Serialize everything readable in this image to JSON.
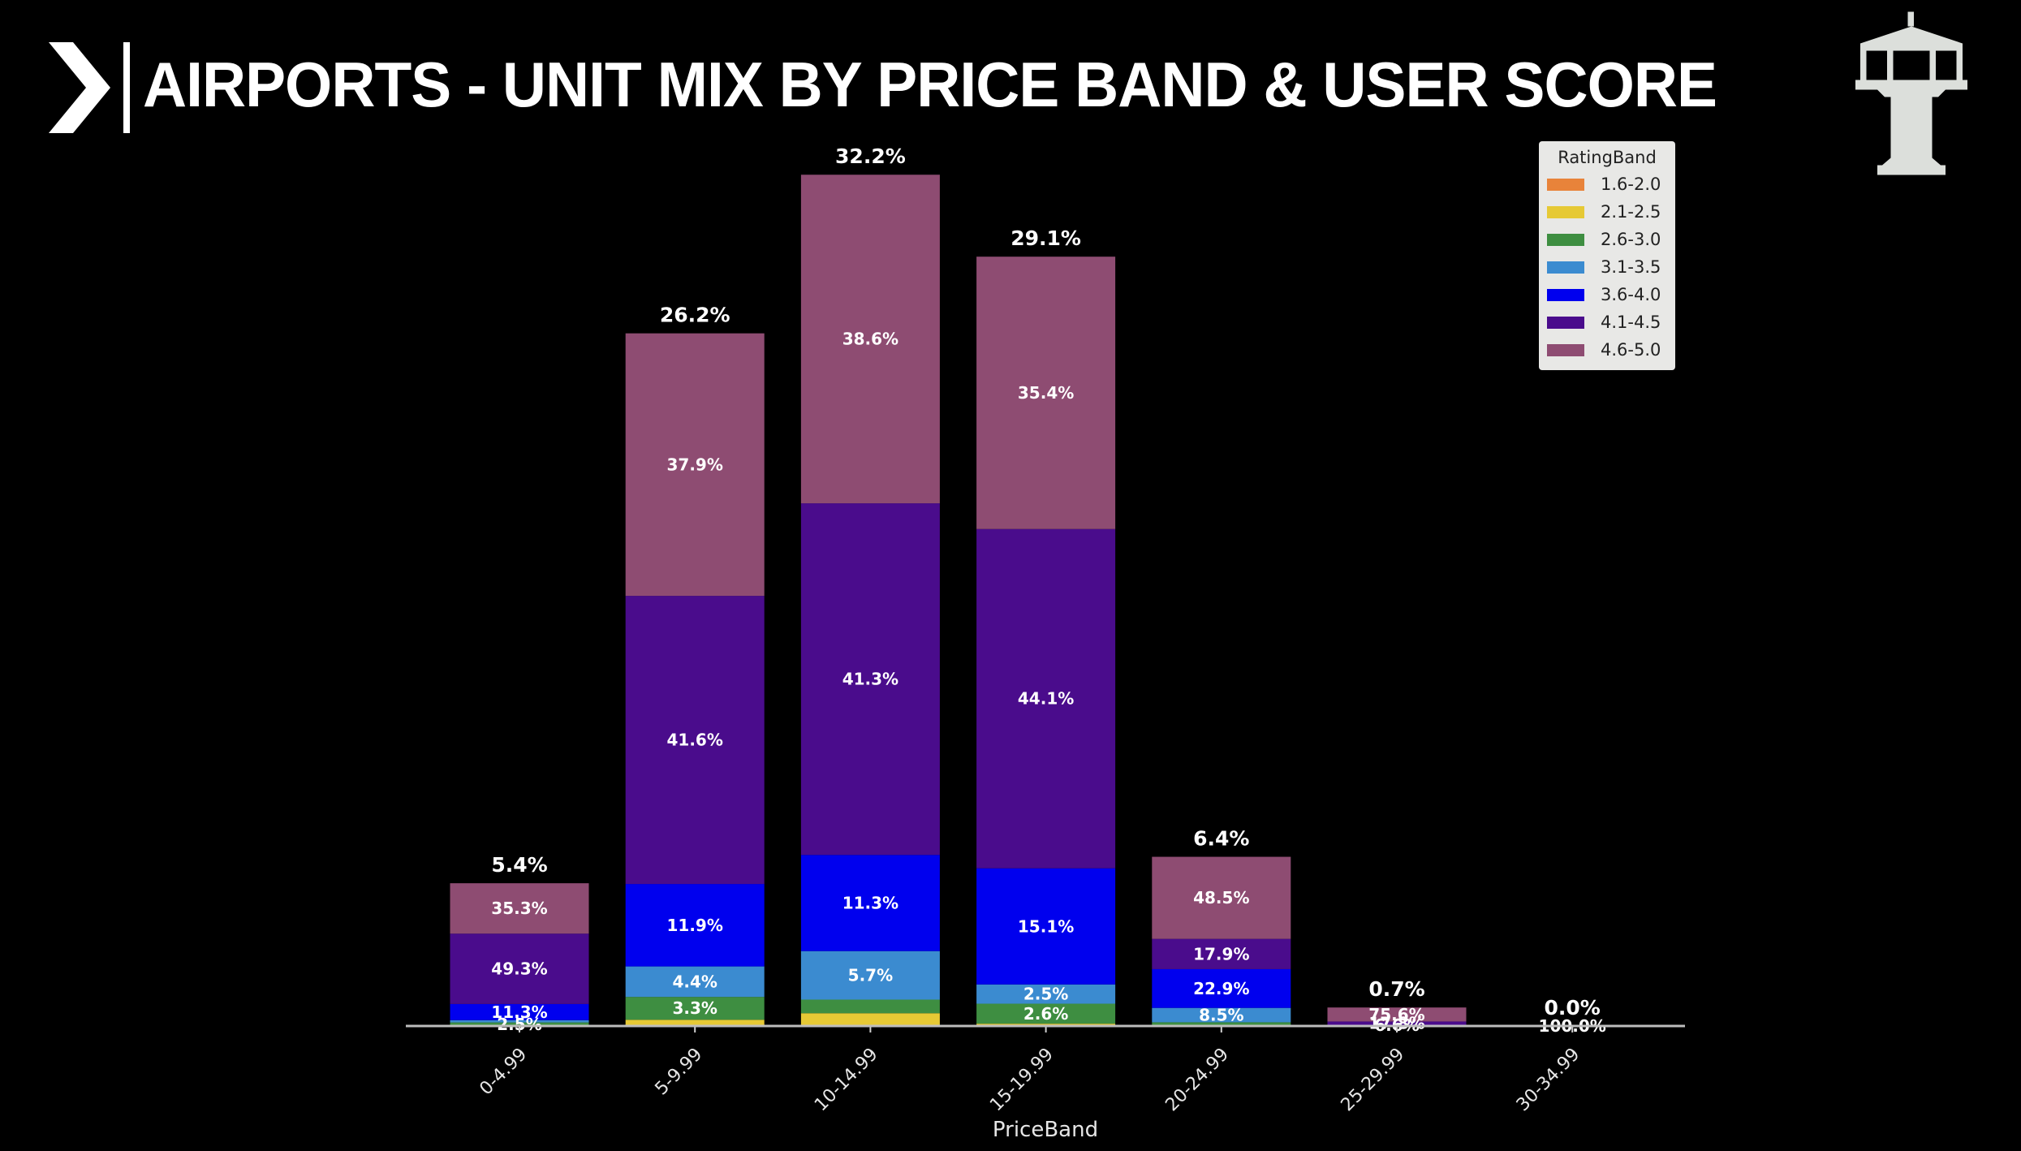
{
  "header": {
    "title": "AIRPORTS - UNIT MIX BY PRICE BAND & USER SCORE",
    "logo_icon": "chevron-right-icon",
    "brand_icon": "control-tower-icon"
  },
  "chart_data": {
    "type": "bar",
    "stacked": true,
    "title": "AIRPORTS - UNIT MIX BY PRICE BAND & USER SCORE",
    "xlabel": "PriceBand",
    "ylabel": "",
    "categories": [
      "0-4.99",
      "5-9.99",
      "10-14.99",
      "15-19.99",
      "20-24.99",
      "25-29.99",
      "30-34.99"
    ],
    "totals": [
      5.4,
      26.2,
      32.2,
      29.1,
      6.4,
      0.7,
      0.0
    ],
    "total_labels": [
      "5.4%",
      "26.2%",
      "32.2%",
      "29.1%",
      "6.4%",
      "0.7%",
      "0.0%"
    ],
    "ylim": [
      0,
      34
    ],
    "grid": false,
    "legend": {
      "title": "RatingBand",
      "placement": "top-right"
    },
    "series": [
      {
        "name": "1.6-2.0",
        "color": "#e8833a",
        "shares": [
          0,
          0,
          0,
          0,
          0,
          0,
          0
        ]
      },
      {
        "name": "2.1-2.5",
        "color": "#e6c935",
        "shares": [
          0,
          0.9,
          1.5,
          0.3,
          0,
          0,
          0
        ]
      },
      {
        "name": "2.6-3.0",
        "color": "#3e8e41",
        "shares": [
          2.5,
          3.3,
          1.6,
          2.6,
          2.2,
          0,
          0
        ]
      },
      {
        "name": "3.1-3.5",
        "color": "#3b8bd0",
        "shares": [
          1.6,
          4.4,
          5.7,
          2.5,
          8.5,
          0,
          0
        ]
      },
      {
        "name": "3.6-4.0",
        "color": "#0000ee",
        "shares": [
          11.3,
          11.9,
          11.3,
          15.1,
          22.9,
          6.6,
          0
        ]
      },
      {
        "name": "4.1-4.5",
        "color": "#4a0c8c",
        "shares": [
          49.3,
          41.6,
          41.3,
          44.1,
          17.9,
          17.8,
          0
        ]
      },
      {
        "name": "4.6-5.0",
        "color": "#8e4c72",
        "shares": [
          35.3,
          37.9,
          38.6,
          35.4,
          48.5,
          75.6,
          100.0
        ]
      }
    ],
    "segment_labels": {
      "1.6-2.0": [
        "",
        "",
        "",
        "",
        "",
        "",
        ""
      ],
      "2.1-2.5": [
        "",
        "",
        "",
        "",
        "",
        "",
        ""
      ],
      "2.6-3.0": [
        "2.5%",
        "3.3%",
        "",
        "2.6%",
        "",
        "",
        ""
      ],
      "3.1-3.5": [
        "",
        "4.4%",
        "5.7%",
        "2.5%",
        "8.5%",
        "",
        ""
      ],
      "3.6-4.0": [
        "11.3%",
        "11.9%",
        "11.3%",
        "15.1%",
        "22.9%",
        "6.6%",
        ""
      ],
      "4.1-4.5": [
        "49.3%",
        "41.6%",
        "41.3%",
        "44.1%",
        "17.9%",
        "17.8%",
        ""
      ],
      "4.6-5.0": [
        "35.3%",
        "37.9%",
        "38.6%",
        "35.4%",
        "48.5%",
        "75.6%",
        "100.0%"
      ]
    }
  }
}
